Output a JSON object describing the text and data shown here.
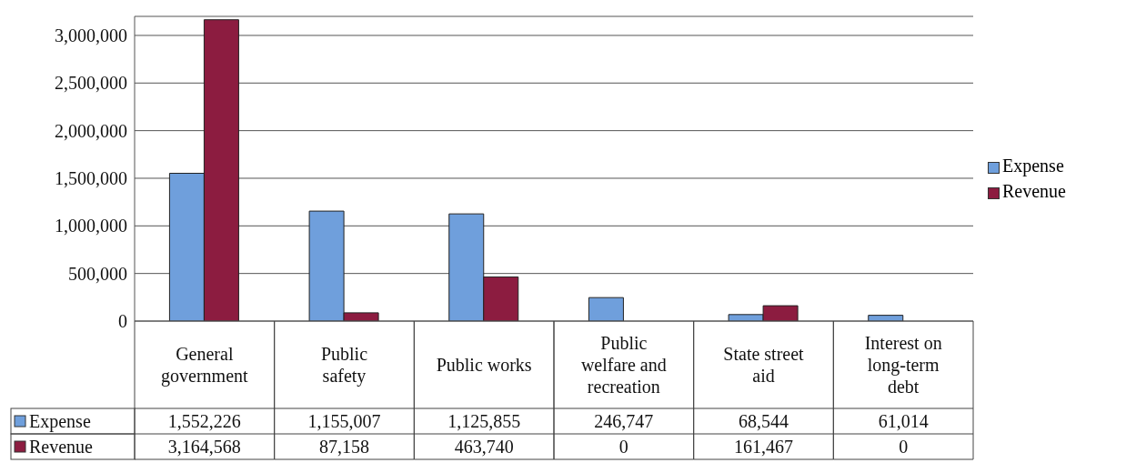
{
  "chart_data": {
    "type": "bar",
    "categories": [
      "General government",
      "Public safety",
      "Public works",
      "Public welfare and recreation",
      "State street aid",
      "Interest on long-term debt"
    ],
    "series": [
      {
        "name": "Expense",
        "color": "#6f9fdc",
        "values": [
          1552226,
          1155007,
          1125855,
          246747,
          68544,
          61014
        ],
        "value_labels": [
          "1,552,226",
          "1,155,007",
          "1,125,855",
          "246,747",
          "68,544",
          "61,014"
        ]
      },
      {
        "name": "Revenue",
        "color": "#8c1c40",
        "values": [
          3164568,
          87158,
          463740,
          0,
          161467,
          0
        ],
        "value_labels": [
          "3,164,568",
          "87,158",
          "463,740",
          "0",
          "161,467",
          "0"
        ]
      }
    ],
    "ylim": [
      0,
      3200000
    ],
    "yticks": [
      {
        "value": 0,
        "label": "0"
      },
      {
        "value": 500000,
        "label": "500,000"
      },
      {
        "value": 1000000,
        "label": "1,000,000"
      },
      {
        "value": 1500000,
        "label": "1,500,000"
      },
      {
        "value": 2000000,
        "label": "2,000,000"
      },
      {
        "value": 2500000,
        "label": "2,500,000"
      },
      {
        "value": 3000000,
        "label": "3,000,000"
      }
    ],
    "grid": "y",
    "legend": "right"
  }
}
